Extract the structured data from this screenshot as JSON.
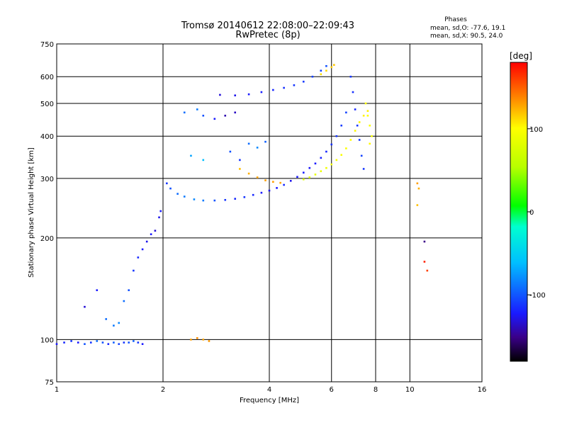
{
  "chart_data": {
    "type": "scatter",
    "title": "Tromsø 20140612 22:08:00–22:09:43",
    "subtitle": "RwPretec (8p)",
    "xlabel": "Frequency [MHz]",
    "ylabel": "Stationary phase Virtual Height [km]",
    "x_scale": "log",
    "y_scale": "log",
    "xlim": [
      1,
      16
    ],
    "ylim": [
      75,
      750
    ],
    "x_ticks": [
      1,
      2,
      4,
      6,
      8,
      10,
      16
    ],
    "x_tick_labels": [
      "1",
      "2",
      "4",
      "6",
      "8",
      "10",
      "16"
    ],
    "y_ticks": [
      75,
      100,
      200,
      300,
      400,
      500,
      600,
      750
    ],
    "y_tick_labels": [
      "75",
      "100",
      "200",
      "300",
      "400",
      "500",
      "600",
      "750"
    ],
    "grid": true,
    "stats": {
      "title": "Phases",
      "line_o": "mean, sd,O: -77.6, 19.1",
      "line_x": "mean, sd,X:  90.5, 24.0"
    },
    "colorbar": {
      "label": "[deg]",
      "ticks": [
        100,
        0,
        -100
      ],
      "tick_labels": [
        "100",
        "0",
        "-100"
      ],
      "range": [
        -180,
        180
      ]
    },
    "series": [
      {
        "points": [
          [
            1.0,
            97,
            -120
          ],
          [
            1.05,
            98,
            -115
          ],
          [
            1.1,
            99,
            -110
          ],
          [
            1.15,
            98,
            -120
          ],
          [
            1.2,
            97,
            -100
          ],
          [
            1.25,
            98,
            -110
          ],
          [
            1.3,
            99,
            -90
          ],
          [
            1.35,
            98,
            -100
          ],
          [
            1.4,
            97,
            -115
          ],
          [
            1.45,
            98,
            -95
          ],
          [
            1.5,
            97,
            -105
          ],
          [
            1.55,
            98,
            -110
          ],
          [
            1.6,
            98,
            -100
          ],
          [
            1.65,
            99,
            -95
          ],
          [
            1.7,
            98,
            -110
          ],
          [
            1.75,
            97,
            -120
          ]
        ]
      },
      {
        "points": [
          [
            1.2,
            125,
            -130
          ],
          [
            1.3,
            140,
            -120
          ],
          [
            1.38,
            115,
            -90
          ],
          [
            1.45,
            110,
            -85
          ],
          [
            1.5,
            112,
            -80
          ],
          [
            1.55,
            130,
            -90
          ],
          [
            1.6,
            140,
            -100
          ],
          [
            1.65,
            160,
            -110
          ],
          [
            1.7,
            175,
            -115
          ],
          [
            1.75,
            185,
            -120
          ],
          [
            1.8,
            195,
            -125
          ],
          [
            1.85,
            205,
            -120
          ],
          [
            1.9,
            210,
            -130
          ],
          [
            1.95,
            230,
            -125
          ],
          [
            1.97,
            240,
            -120
          ]
        ]
      },
      {
        "points": [
          [
            2.05,
            290,
            -110
          ],
          [
            2.1,
            280,
            -100
          ],
          [
            2.2,
            270,
            -90
          ],
          [
            2.3,
            265,
            -85
          ],
          [
            2.45,
            260,
            -80
          ],
          [
            2.6,
            258,
            -85
          ],
          [
            2.8,
            258,
            -100
          ],
          [
            3.0,
            259,
            -110
          ],
          [
            3.2,
            261,
            -115
          ],
          [
            3.4,
            264,
            -110
          ],
          [
            3.6,
            268,
            -115
          ],
          [
            3.8,
            272,
            -120
          ],
          [
            4.0,
            276,
            -125
          ],
          [
            4.2,
            281,
            -120
          ],
          [
            4.4,
            287,
            -115
          ],
          [
            4.6,
            295,
            -125
          ],
          [
            4.8,
            303,
            -120
          ],
          [
            5.0,
            312,
            -118
          ],
          [
            5.2,
            322,
            -122
          ],
          [
            5.4,
            332,
            -120
          ],
          [
            5.6,
            345,
            -118
          ],
          [
            5.8,
            360,
            -115
          ],
          [
            6.0,
            378,
            -112
          ],
          [
            6.2,
            400,
            -110
          ],
          [
            6.4,
            430,
            -108
          ],
          [
            6.6,
            470,
            -105
          ]
        ]
      },
      {
        "points": [
          [
            3.3,
            320,
            120
          ],
          [
            3.5,
            310,
            125
          ],
          [
            3.7,
            302,
            128
          ],
          [
            3.9,
            296,
            130
          ],
          [
            4.1,
            293,
            130
          ],
          [
            4.3,
            291,
            128
          ]
        ]
      },
      {
        "points": [
          [
            2.4,
            100,
            130
          ],
          [
            2.5,
            101,
            135
          ],
          [
            2.6,
            100,
            128
          ],
          [
            2.7,
            99,
            132
          ]
        ]
      },
      {
        "points": [
          [
            5.0,
            298,
            75
          ],
          [
            5.2,
            302,
            80
          ],
          [
            5.4,
            308,
            85
          ],
          [
            5.6,
            315,
            88
          ],
          [
            5.8,
            322,
            90
          ],
          [
            6.0,
            330,
            92
          ],
          [
            6.2,
            340,
            95
          ],
          [
            6.4,
            352,
            97
          ],
          [
            6.6,
            368,
            98
          ],
          [
            6.8,
            390,
            100
          ],
          [
            7.0,
            415,
            102
          ],
          [
            7.2,
            440,
            103
          ],
          [
            7.4,
            460,
            104
          ],
          [
            7.6,
            475,
            105
          ]
        ]
      },
      {
        "points": [
          [
            2.9,
            530,
            -130
          ],
          [
            3.2,
            528,
            -125
          ],
          [
            3.5,
            532,
            -120
          ],
          [
            3.8,
            540,
            -118
          ],
          [
            4.1,
            548,
            -115
          ],
          [
            4.4,
            556,
            -112
          ],
          [
            4.7,
            566,
            -110
          ],
          [
            5.0,
            580,
            -108
          ],
          [
            5.3,
            600,
            -106
          ],
          [
            5.6,
            625,
            -105
          ],
          [
            5.8,
            645,
            -100
          ]
        ]
      },
      {
        "points": [
          [
            5.6,
            610,
            110
          ],
          [
            5.8,
            625,
            112
          ],
          [
            6.0,
            640,
            115
          ],
          [
            6.1,
            650,
            118
          ]
        ]
      },
      {
        "points": [
          [
            2.3,
            470,
            -90
          ],
          [
            2.5,
            480,
            -85
          ],
          [
            2.6,
            460,
            -100
          ],
          [
            2.8,
            450,
            -120
          ],
          [
            3.0,
            460,
            -140
          ],
          [
            3.2,
            470,
            -135
          ],
          [
            3.5,
            380,
            -90
          ],
          [
            3.7,
            370,
            -80
          ],
          [
            3.9,
            385,
            -95
          ],
          [
            2.4,
            350,
            -70
          ],
          [
            2.6,
            340,
            -60
          ],
          [
            3.1,
            360,
            -100
          ],
          [
            3.3,
            340,
            -110
          ]
        ]
      },
      {
        "points": [
          [
            6.8,
            600,
            -110
          ],
          [
            6.9,
            540,
            -112
          ],
          [
            7.0,
            480,
            -115
          ],
          [
            7.1,
            430,
            -110
          ],
          [
            7.2,
            390,
            -108
          ],
          [
            7.3,
            350,
            -105
          ],
          [
            7.4,
            320,
            -110
          ]
        ]
      },
      {
        "points": [
          [
            7.5,
            500,
            100
          ],
          [
            7.6,
            460,
            98
          ],
          [
            7.7,
            430,
            96
          ],
          [
            7.8,
            400,
            95
          ],
          [
            7.7,
            380,
            102
          ]
        ]
      },
      {
        "points": [
          [
            10.5,
            290,
            130
          ],
          [
            10.6,
            280,
            125
          ],
          [
            10.5,
            250,
            120
          ],
          [
            11.0,
            195,
            -150
          ],
          [
            11.0,
            170,
            170
          ],
          [
            11.2,
            160,
            160
          ]
        ]
      }
    ]
  }
}
